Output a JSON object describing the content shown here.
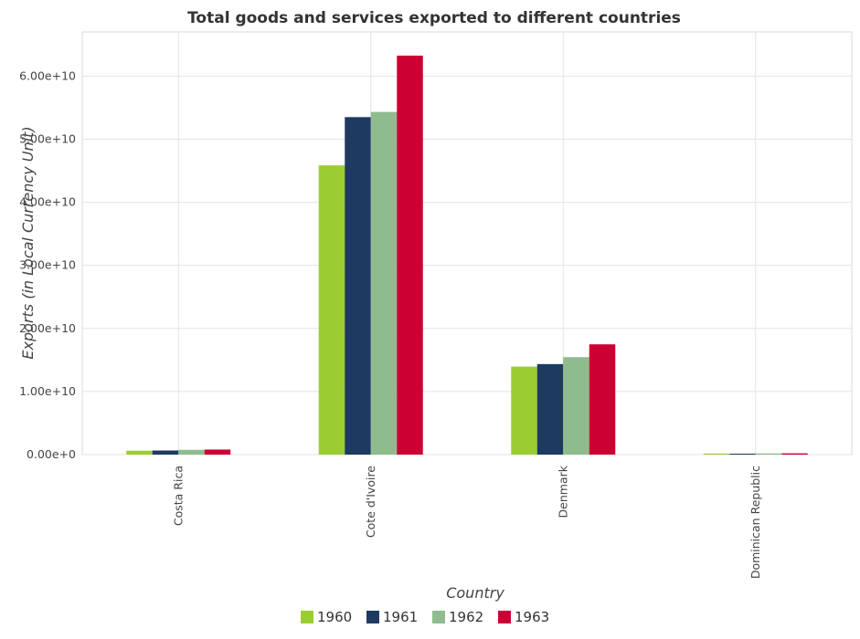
{
  "chart_data": {
    "type": "bar",
    "title": "Total goods and services exported to different countries",
    "xlabel": "Country",
    "ylabel": "Exports (in Local Currency Unit)",
    "categories": [
      "Costa Rica",
      "Cote d'Ivoire",
      "Denmark",
      "Dominican Republic"
    ],
    "series": [
      {
        "name": "1960",
        "color": "#9acd32",
        "values": [
          620000000.0,
          45850000000.0,
          13950000000.0,
          170000000.0
        ]
      },
      {
        "name": "1961",
        "color": "#1f3a60",
        "values": [
          650000000.0,
          53500000000.0,
          14350000000.0,
          150000000.0
        ]
      },
      {
        "name": "1962",
        "color": "#8fbc8f",
        "values": [
          760000000.0,
          54320000000.0,
          15450000000.0,
          190000000.0
        ]
      },
      {
        "name": "1963",
        "color": "#cc0033",
        "values": [
          800000000.0,
          63250000000.0,
          17480000000.0,
          200000000.0
        ]
      }
    ],
    "yticks": [
      0,
      10000000000.0,
      20000000000.0,
      30000000000.0,
      40000000000.0,
      50000000000.0,
      60000000000.0
    ],
    "ytick_labels": [
      "0.00e+0",
      "1.00e+10",
      "2.00e+10",
      "3.00e+10",
      "4.00e+10",
      "5.00e+10",
      "6.00e+10"
    ],
    "ylim": [
      0,
      67000000000.0
    ],
    "grid": true,
    "legend_position": "bottom-center"
  }
}
